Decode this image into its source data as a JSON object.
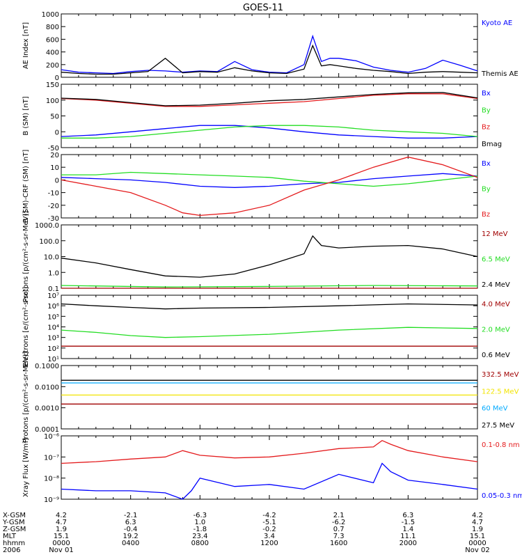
{
  "title": "GOES-11",
  "colors": {
    "black": "#000000",
    "red": "#e41a1c",
    "darkred": "#a00000",
    "green": "#22dd22",
    "blue": "#0000ff",
    "lightblue": "#00aaff",
    "yellow": "#f2e400",
    "gray": "#000000"
  },
  "x_axis": {
    "positions": [
      0,
      4,
      8,
      12,
      16,
      20,
      24
    ],
    "rows": [
      {
        "label": "X-GSM",
        "values": [
          "4.2",
          "-2.1",
          "-6.3",
          "-4.2",
          "2.1",
          "6.3",
          "4.2"
        ]
      },
      {
        "label": "Y-GSM",
        "values": [
          "4.7",
          "6.3",
          "1.0",
          "-5.1",
          "-6.2",
          "-1.5",
          "4.7"
        ]
      },
      {
        "label": "Z-GSM",
        "values": [
          "1.9",
          "-0.4",
          "-1.8",
          "-0.2",
          "0.7",
          "1.4",
          "1.9"
        ]
      },
      {
        "label": "MLT",
        "values": [
          "15.1",
          "19.2",
          "23.4",
          "3.4",
          "7.3",
          "11.1",
          "15.1"
        ]
      },
      {
        "label": "hhmm",
        "values": [
          "0000",
          "0400",
          "0800",
          "1200",
          "1600",
          "2000",
          "0000"
        ]
      },
      {
        "label": "2006",
        "values": [
          "Nov 01",
          "",
          "",
          "",
          "",
          "",
          "Nov 02"
        ]
      }
    ]
  },
  "chart_data": [
    {
      "type": "line",
      "ylabel": "AE Index [nT]",
      "scale": "linear",
      "ylim": [
        0,
        1000
      ],
      "ticks": [
        "0",
        "200",
        "400",
        "600",
        "800",
        "1000"
      ],
      "tick_values": [
        0,
        200,
        400,
        600,
        800,
        1000
      ],
      "series": [
        {
          "name": "Kyoto AE",
          "color": "blue",
          "x": [
            0,
            1,
            2,
            3,
            4,
            5,
            6,
            7,
            8,
            9,
            10,
            11,
            12,
            13,
            14,
            14.5,
            15,
            15.5,
            16,
            17,
            18,
            19,
            20,
            21,
            22,
            23,
            24
          ],
          "y": [
            120,
            80,
            70,
            60,
            90,
            110,
            100,
            80,
            100,
            90,
            250,
            120,
            80,
            70,
            200,
            650,
            250,
            300,
            300,
            260,
            160,
            110,
            80,
            140,
            270,
            190,
            100
          ]
        },
        {
          "name": "Themis AE",
          "color": "black",
          "x": [
            0,
            1,
            2,
            3,
            4,
            5,
            6,
            7,
            8,
            9,
            10,
            11,
            12,
            13,
            14,
            14.5,
            15,
            15.5,
            16,
            17,
            18,
            19,
            20,
            21,
            22,
            23,
            24
          ],
          "y": [
            80,
            60,
            50,
            50,
            70,
            90,
            300,
            70,
            90,
            80,
            150,
            100,
            70,
            60,
            130,
            500,
            180,
            200,
            180,
            140,
            110,
            90,
            60,
            80,
            90,
            80,
            70
          ]
        }
      ]
    },
    {
      "type": "line",
      "ylabel": "B (SM) [nT]",
      "scale": "linear",
      "ylim": [
        -50,
        150
      ],
      "ticks": [
        "-50",
        "0",
        "50",
        "100",
        "150"
      ],
      "tick_values": [
        -50,
        0,
        50,
        100,
        150
      ],
      "series": [
        {
          "name": "Bx",
          "color": "blue",
          "x": [
            0,
            2,
            4,
            6,
            8,
            10,
            12,
            14,
            16,
            18,
            20,
            22,
            24
          ],
          "y": [
            -15,
            -10,
            0,
            10,
            20,
            20,
            12,
            0,
            -10,
            -15,
            -20,
            -20,
            -15
          ]
        },
        {
          "name": "By",
          "color": "green",
          "x": [
            0,
            2,
            4,
            6,
            8,
            10,
            12,
            14,
            16,
            18,
            20,
            22,
            24
          ],
          "y": [
            -20,
            -20,
            -15,
            -5,
            5,
            15,
            20,
            20,
            15,
            5,
            0,
            -5,
            -15
          ]
        },
        {
          "name": "Bz",
          "color": "red",
          "x": [
            0,
            2,
            4,
            6,
            8,
            10,
            12,
            14,
            16,
            18,
            20,
            22,
            24
          ],
          "y": [
            105,
            100,
            90,
            80,
            80,
            85,
            90,
            95,
            105,
            115,
            120,
            120,
            105
          ]
        },
        {
          "name": "Bmag",
          "color": "black",
          "x": [
            0,
            2,
            4,
            6,
            8,
            10,
            12,
            14,
            16,
            18,
            20,
            22,
            24
          ],
          "y": [
            106,
            102,
            92,
            82,
            84,
            90,
            98,
            102,
            110,
            118,
            123,
            124,
            107
          ]
        }
      ]
    },
    {
      "type": "line",
      "ylabel": "B (SM)-CRF (SM) [nT]",
      "scale": "linear",
      "ylim": [
        -30,
        20
      ],
      "ticks": [
        "-30",
        "-20",
        "-10",
        "0",
        "10",
        "20"
      ],
      "tick_values": [
        -30,
        -20,
        -10,
        0,
        10,
        20
      ],
      "series": [
        {
          "name": "Bx",
          "color": "blue",
          "x": [
            0,
            2,
            4,
            6,
            8,
            10,
            12,
            14,
            16,
            18,
            20,
            22,
            24
          ],
          "y": [
            2,
            1,
            0,
            -2,
            -5,
            -6,
            -5,
            -3,
            -2,
            1,
            3,
            5,
            3
          ]
        },
        {
          "name": "By",
          "color": "green",
          "x": [
            0,
            2,
            4,
            6,
            8,
            10,
            12,
            14,
            16,
            18,
            20,
            22,
            24
          ],
          "y": [
            4,
            4,
            6,
            5,
            4,
            3,
            2,
            -1,
            -3,
            -5,
            -3,
            0,
            3
          ]
        },
        {
          "name": "Bz",
          "color": "red",
          "x": [
            0,
            2,
            4,
            6,
            7,
            8,
            10,
            12,
            14,
            16,
            18,
            20,
            22,
            24
          ],
          "y": [
            0,
            -5,
            -10,
            -20,
            -26,
            -28,
            -26,
            -20,
            -8,
            0,
            10,
            18,
            12,
            2
          ]
        }
      ]
    },
    {
      "type": "line",
      "ylabel": "Protons [p/(cm²-s-sr-MeV)]",
      "scale": "log",
      "ylim": [
        0.1,
        1000
      ],
      "ticks": [
        "0.1",
        "1.0",
        "10.0",
        "100.0",
        "1000.0"
      ],
      "tick_values": [
        0.1,
        1,
        10,
        100,
        1000
      ],
      "series": [
        {
          "name": "12 MeV",
          "color": "darkred",
          "x": [
            0,
            6,
            12,
            18,
            24
          ],
          "y": [
            0.1,
            0.1,
            0.1,
            0.1,
            0.1
          ]
        },
        {
          "name": "6.5 MeV",
          "color": "green",
          "x": [
            0,
            6,
            12,
            18,
            24
          ],
          "y": [
            0.15,
            0.12,
            0.13,
            0.15,
            0.14
          ]
        },
        {
          "name": "2.4 MeV",
          "color": "black",
          "x": [
            0,
            2,
            4,
            6,
            8,
            10,
            12,
            14,
            14.5,
            15,
            16,
            18,
            20,
            22,
            24
          ],
          "y": [
            8,
            4,
            1.5,
            0.6,
            0.5,
            0.8,
            3,
            15,
            200,
            50,
            35,
            45,
            50,
            30,
            10
          ]
        }
      ]
    },
    {
      "type": "line",
      "ylabel": "Electrons [e/(cm²-s-sr)]",
      "scale": "log",
      "ylim": [
        10,
        10000000
      ],
      "ticks": [
        "10¹",
        "10²",
        "10³",
        "10⁴",
        "10⁵",
        "10⁶",
        "10⁷"
      ],
      "tick_values": [
        10,
        100,
        1000,
        10000,
        100000,
        1000000,
        10000000
      ],
      "series": [
        {
          "name": "4.0 MeV",
          "color": "darkred",
          "x": [
            0,
            6,
            12,
            18,
            24
          ],
          "y": [
            150,
            150,
            150,
            150,
            150
          ]
        },
        {
          "name": "2.0 MeV",
          "color": "green",
          "x": [
            0,
            2,
            4,
            6,
            8,
            12,
            16,
            20,
            24
          ],
          "y": [
            5000,
            3000,
            1500,
            1000,
            1200,
            2000,
            5000,
            9000,
            7000
          ]
        },
        {
          "name": "0.6 MeV",
          "color": "black",
          "x": [
            0,
            2,
            4,
            6,
            8,
            12,
            16,
            20,
            24
          ],
          "y": [
            1500000,
            1000000,
            700000,
            500000,
            600000,
            700000,
            1000000,
            1500000,
            1200000
          ]
        }
      ]
    },
    {
      "type": "line",
      "ylabel": "Protons [p/(cm²-s-sr-MeV)]",
      "scale": "log",
      "ylim": [
        0.0001,
        0.1
      ],
      "ticks": [
        "0.0001",
        "0.0010",
        "0.0100",
        "0.1000"
      ],
      "tick_values": [
        0.0001,
        0.001,
        0.01,
        0.1
      ],
      "series": [
        {
          "name": "332.5 MeV",
          "color": "darkred",
          "x": [
            0,
            12,
            24
          ],
          "y": [
            0.0015,
            0.0015,
            0.0015
          ]
        },
        {
          "name": "122.5 MeV",
          "color": "yellow",
          "x": [
            0,
            12,
            24
          ],
          "y": [
            0.004,
            0.004,
            0.004
          ]
        },
        {
          "name": "60 MeV",
          "color": "lightblue",
          "x": [
            0,
            12,
            24
          ],
          "y": [
            0.015,
            0.015,
            0.015
          ]
        },
        {
          "name": "27.5 MeV",
          "color": "black",
          "x": [
            0,
            12,
            24
          ],
          "y": [
            0.02,
            0.02,
            0.02
          ]
        }
      ]
    },
    {
      "type": "line",
      "ylabel": "Xray Flux [W/m²]",
      "scale": "log",
      "ylim": [
        1e-09,
        1e-06
      ],
      "ticks": [
        "10⁻⁹",
        "10⁻⁸",
        "10⁻⁷",
        "10⁻⁶"
      ],
      "tick_values": [
        1e-09,
        1e-08,
        1e-07,
        1e-06
      ],
      "series": [
        {
          "name": "0.1-0.8 nm",
          "color": "red",
          "x": [
            0,
            2,
            4,
            6,
            7,
            8,
            10,
            12,
            14,
            16,
            18,
            18.5,
            19,
            20,
            22,
            24
          ],
          "y": [
            5e-08,
            6e-08,
            8e-08,
            1e-07,
            2e-07,
            1.2e-07,
            9e-08,
            1e-07,
            1.5e-07,
            2.5e-07,
            3e-07,
            6e-07,
            4e-07,
            2e-07,
            1e-07,
            6e-08
          ]
        },
        {
          "name": "0.05-0.3 nm",
          "color": "blue",
          "x": [
            0,
            2,
            4,
            6,
            7,
            7.5,
            8,
            10,
            12,
            14,
            16,
            18,
            18.5,
            19,
            20,
            22,
            24
          ],
          "y": [
            3e-09,
            2.5e-09,
            2.5e-09,
            2e-09,
            1e-09,
            2.5e-09,
            1e-08,
            4e-09,
            5e-09,
            3e-09,
            1.5e-08,
            6e-09,
            5e-08,
            2e-08,
            8e-09,
            5e-09,
            3e-09
          ]
        }
      ]
    }
  ]
}
